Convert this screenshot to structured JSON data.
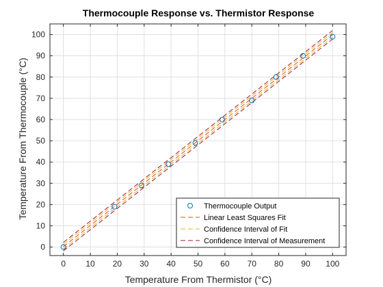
{
  "chart_data": {
    "type": "scatter",
    "title": "Thermocouple Response vs. Thermistor Response",
    "xlabel": "Temperature From Thermistor (°C)",
    "ylabel": "Temperature From Thermocouple (°C)",
    "xlim": [
      -5,
      105
    ],
    "ylim": [
      -4,
      105
    ],
    "xticks": [
      0,
      10,
      20,
      30,
      40,
      50,
      60,
      70,
      80,
      90,
      100
    ],
    "yticks": [
      0,
      10,
      20,
      30,
      40,
      50,
      60,
      70,
      80,
      90,
      100
    ],
    "grid": true,
    "legend_position": "bottom-right",
    "colors": {
      "points": "#0072BD",
      "fit": "#D95319",
      "fit_ci": "#EDB120",
      "measurement_ci": "#A2142F",
      "grid": "#dfdfdf",
      "axis": "#262626"
    },
    "series": [
      {
        "name": "Thermocouple Output",
        "kind": "points",
        "x": [
          0,
          19,
          29,
          39,
          49,
          59,
          70,
          79,
          89,
          100
        ],
        "y": [
          0,
          19,
          29,
          39,
          49,
          60,
          69,
          80,
          90,
          99
        ]
      },
      {
        "name": "Linear Least Squares Fit",
        "kind": "line",
        "x": [
          0,
          100
        ],
        "y": [
          0.2,
          99.9
        ]
      },
      {
        "name": "Confidence Interval of Fit",
        "kind": "band",
        "x": [
          0,
          100
        ],
        "lower": [
          -0.9,
          98.8
        ],
        "upper": [
          1.3,
          101.0
        ]
      },
      {
        "name": "Confidence Interval of Measurement",
        "kind": "band",
        "x": [
          0,
          100
        ],
        "lower": [
          -1.8,
          97.9
        ],
        "upper": [
          2.2,
          101.9
        ]
      }
    ]
  }
}
